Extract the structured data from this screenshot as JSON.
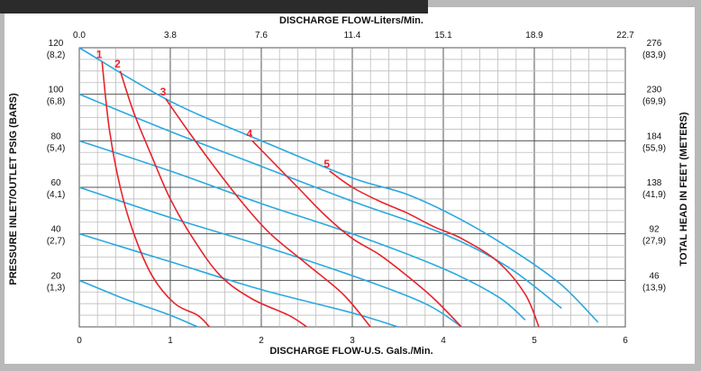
{
  "chart_data": {
    "type": "line",
    "top_axis_title": "DISCHARGE FLOW-Liters/Min.",
    "top_ticks": [
      "0.0",
      "3.8",
      "7.6",
      "11.4",
      "15.1",
      "18.9",
      "22.7"
    ],
    "bottom_axis_title": "DISCHARGE FLOW-U.S. Gals./Min.",
    "bottom_ticks": [
      "0",
      "1",
      "2",
      "3",
      "4",
      "5",
      "6"
    ],
    "left_axis_title": "PRESSURE INLET/OUTLET PSIG (BARS)",
    "left_ticks": [
      {
        "psi": "120",
        "bar": "(8,2)"
      },
      {
        "psi": "100",
        "bar": "(6,8)"
      },
      {
        "psi": "80",
        "bar": "(5,4)"
      },
      {
        "psi": "60",
        "bar": "(4,1)"
      },
      {
        "psi": "40",
        "bar": "(2,7)"
      },
      {
        "psi": "20",
        "bar": "(1,3)"
      }
    ],
    "right_axis_title": "TOTAL HEAD IN FEET (METERS)",
    "right_ticks": [
      {
        "ft": "276",
        "m": "(83,9)"
      },
      {
        "ft": "230",
        "m": "(69,9)"
      },
      {
        "ft": "184",
        "m": "(55,9)"
      },
      {
        "ft": "138",
        "m": "(41,9)"
      },
      {
        "ft": "92",
        "m": "(27,9)"
      },
      {
        "ft": "46",
        "m": "(13,9)"
      }
    ],
    "xlim": [
      0,
      6
    ],
    "ylim": [
      0,
      120
    ],
    "grid": true,
    "colors": {
      "performance": "#e8242c",
      "air": "#29a9e0",
      "label": "#e8242c"
    },
    "performance_curves": [
      {
        "label": "1",
        "points": [
          [
            0.25,
            114
          ],
          [
            0.33,
            85
          ],
          [
            0.45,
            60
          ],
          [
            0.6,
            40
          ],
          [
            0.8,
            22
          ],
          [
            1.05,
            10
          ],
          [
            1.3,
            5
          ],
          [
            1.43,
            0
          ]
        ]
      },
      {
        "label": "2",
        "points": [
          [
            0.45,
            110
          ],
          [
            0.6,
            92
          ],
          [
            0.8,
            73
          ],
          [
            1.0,
            55
          ],
          [
            1.25,
            38
          ],
          [
            1.55,
            22
          ],
          [
            1.9,
            12
          ],
          [
            2.3,
            5
          ],
          [
            2.5,
            0
          ]
        ]
      },
      {
        "label": "3",
        "points": [
          [
            0.95,
            98
          ],
          [
            1.2,
            84
          ],
          [
            1.5,
            68
          ],
          [
            1.8,
            53
          ],
          [
            2.1,
            40
          ],
          [
            2.5,
            27
          ],
          [
            2.9,
            14
          ],
          [
            3.2,
            0
          ]
        ]
      },
      {
        "label": "4",
        "points": [
          [
            1.9,
            80
          ],
          [
            2.1,
            72
          ],
          [
            2.4,
            60
          ],
          [
            2.7,
            48
          ],
          [
            3.0,
            38
          ],
          [
            3.3,
            31
          ],
          [
            3.6,
            22
          ],
          [
            3.9,
            12
          ],
          [
            4.2,
            0
          ]
        ]
      },
      {
        "label": "5",
        "points": [
          [
            2.75,
            67
          ],
          [
            3.0,
            60
          ],
          [
            3.3,
            54
          ],
          [
            3.6,
            49
          ],
          [
            3.9,
            43
          ],
          [
            4.2,
            38
          ],
          [
            4.6,
            28
          ],
          [
            4.9,
            14
          ],
          [
            5.05,
            0
          ]
        ]
      }
    ],
    "air_curves": [
      {
        "points": [
          [
            0,
            120
          ],
          [
            1.0,
            97
          ],
          [
            2.0,
            80
          ],
          [
            3.0,
            64
          ],
          [
            3.6,
            57
          ],
          [
            4.2,
            46
          ],
          [
            4.8,
            32
          ],
          [
            5.3,
            18
          ],
          [
            5.7,
            2
          ]
        ]
      },
      {
        "points": [
          [
            0,
            100
          ],
          [
            1.0,
            84
          ],
          [
            2.0,
            69
          ],
          [
            3.0,
            54
          ],
          [
            4.0,
            40
          ],
          [
            4.7,
            26
          ],
          [
            5.3,
            8
          ]
        ]
      },
      {
        "points": [
          [
            0,
            80
          ],
          [
            1.0,
            67
          ],
          [
            2.0,
            53
          ],
          [
            3.0,
            40
          ],
          [
            4.0,
            25
          ],
          [
            4.6,
            13
          ],
          [
            4.9,
            3
          ]
        ]
      },
      {
        "points": [
          [
            0,
            60
          ],
          [
            1.0,
            47
          ],
          [
            2.0,
            35
          ],
          [
            3.0,
            22
          ],
          [
            3.8,
            10
          ],
          [
            4.2,
            0
          ]
        ]
      },
      {
        "points": [
          [
            0,
            40
          ],
          [
            1.0,
            28
          ],
          [
            2.0,
            16
          ],
          [
            3.0,
            6
          ],
          [
            3.5,
            0
          ]
        ]
      },
      {
        "points": [
          [
            0,
            20
          ],
          [
            0.5,
            12
          ],
          [
            1.0,
            5
          ],
          [
            1.3,
            0
          ]
        ]
      }
    ]
  }
}
